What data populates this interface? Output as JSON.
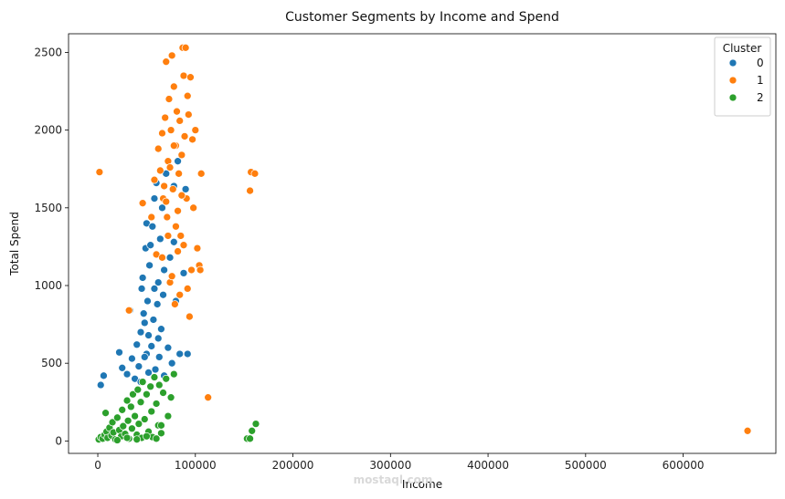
{
  "chart_data": {
    "type": "scatter",
    "title": "Customer Segments by Income and Spend",
    "xlabel": "Income",
    "ylabel": "Total Spend",
    "xlim": [
      -30000,
      695000
    ],
    "ylim": [
      -80,
      2620
    ],
    "xticks": [
      0,
      100000,
      200000,
      300000,
      400000,
      500000,
      600000
    ],
    "yticks": [
      0,
      500,
      1000,
      1500,
      2000,
      2500
    ],
    "grid": false,
    "legend": {
      "title": "Cluster",
      "placement": "top-right"
    },
    "series": [
      {
        "name": "0",
        "color": "#1f77b4",
        "points": [
          [
            3000,
            360
          ],
          [
            6000,
            420
          ],
          [
            22000,
            570
          ],
          [
            25000,
            470
          ],
          [
            30000,
            430
          ],
          [
            33000,
            840
          ],
          [
            35000,
            530
          ],
          [
            38000,
            400
          ],
          [
            40000,
            620
          ],
          [
            42000,
            480
          ],
          [
            44000,
            700
          ],
          [
            45000,
            980
          ],
          [
            46000,
            1050
          ],
          [
            47000,
            820
          ],
          [
            48000,
            760
          ],
          [
            49000,
            1240
          ],
          [
            50000,
            1400
          ],
          [
            50000,
            560
          ],
          [
            51000,
            900
          ],
          [
            52000,
            680
          ],
          [
            53000,
            1130
          ],
          [
            54000,
            1260
          ],
          [
            55000,
            610
          ],
          [
            56000,
            1380
          ],
          [
            57000,
            780
          ],
          [
            58000,
            1560
          ],
          [
            59000,
            460
          ],
          [
            60000,
            1660
          ],
          [
            61000,
            880
          ],
          [
            62000,
            1020
          ],
          [
            63000,
            540
          ],
          [
            64000,
            1300
          ],
          [
            65000,
            720
          ],
          [
            66000,
            1500
          ],
          [
            67000,
            940
          ],
          [
            68000,
            420
          ],
          [
            70000,
            1720
          ],
          [
            72000,
            600
          ],
          [
            74000,
            1180
          ],
          [
            76000,
            500
          ],
          [
            78000,
            1640
          ],
          [
            80000,
            900
          ],
          [
            82000,
            1800
          ],
          [
            84000,
            560
          ],
          [
            88000,
            1080
          ],
          [
            90000,
            1620
          ],
          [
            92000,
            560
          ],
          [
            78000,
            1280
          ],
          [
            68000,
            1100
          ],
          [
            58000,
            980
          ],
          [
            48000,
            540
          ],
          [
            44000,
            380
          ],
          [
            52000,
            440
          ],
          [
            62000,
            660
          ]
        ]
      },
      {
        "name": "1",
        "color": "#ff7f0e",
        "points": [
          [
            1730,
            1730
          ],
          [
            32000,
            840
          ],
          [
            46000,
            1530
          ],
          [
            55000,
            1440
          ],
          [
            58000,
            1680
          ],
          [
            60000,
            1200
          ],
          [
            62000,
            1880
          ],
          [
            64000,
            1740
          ],
          [
            66000,
            1980
          ],
          [
            67000,
            1560
          ],
          [
            68000,
            1640
          ],
          [
            69000,
            2080
          ],
          [
            70000,
            2440
          ],
          [
            71000,
            1440
          ],
          [
            72000,
            1800
          ],
          [
            73000,
            2200
          ],
          [
            74000,
            1020
          ],
          [
            75000,
            2000
          ],
          [
            76000,
            2480
          ],
          [
            77000,
            1620
          ],
          [
            78000,
            2280
          ],
          [
            79000,
            880
          ],
          [
            80000,
            1900
          ],
          [
            81000,
            2120
          ],
          [
            82000,
            1480
          ],
          [
            83000,
            1720
          ],
          [
            84000,
            2060
          ],
          [
            85000,
            1320
          ],
          [
            86000,
            1840
          ],
          [
            87000,
            2530
          ],
          [
            88000,
            2350
          ],
          [
            89000,
            1960
          ],
          [
            90000,
            2530
          ],
          [
            91000,
            1560
          ],
          [
            92000,
            2220
          ],
          [
            93000,
            2100
          ],
          [
            94000,
            800
          ],
          [
            95000,
            2340
          ],
          [
            96000,
            1100
          ],
          [
            97000,
            1940
          ],
          [
            98000,
            1500
          ],
          [
            100000,
            2000
          ],
          [
            102000,
            1240
          ],
          [
            104000,
            1130
          ],
          [
            105000,
            1100
          ],
          [
            106000,
            1720
          ],
          [
            113000,
            280
          ],
          [
            156000,
            1610
          ],
          [
            157000,
            1730
          ],
          [
            161000,
            1720
          ],
          [
            666000,
            65
          ],
          [
            72000,
            1320
          ],
          [
            76000,
            1060
          ],
          [
            80000,
            1380
          ],
          [
            84000,
            940
          ],
          [
            88000,
            1260
          ],
          [
            92000,
            980
          ],
          [
            66000,
            1180
          ],
          [
            70000,
            1540
          ],
          [
            74000,
            1760
          ],
          [
            78000,
            1900
          ],
          [
            82000,
            1220
          ],
          [
            86000,
            1580
          ]
        ]
      },
      {
        "name": "2",
        "color": "#2ca02c",
        "points": [
          [
            1000,
            10
          ],
          [
            3000,
            25
          ],
          [
            5000,
            15
          ],
          [
            7000,
            40
          ],
          [
            8000,
            180
          ],
          [
            9000,
            60
          ],
          [
            10000,
            20
          ],
          [
            12000,
            85
          ],
          [
            14000,
            35
          ],
          [
            15000,
            120
          ],
          [
            16000,
            55
          ],
          [
            18000,
            10
          ],
          [
            20000,
            150
          ],
          [
            22000,
            70
          ],
          [
            24000,
            30
          ],
          [
            25000,
            200
          ],
          [
            26000,
            95
          ],
          [
            28000,
            45
          ],
          [
            30000,
            260
          ],
          [
            31000,
            130
          ],
          [
            32000,
            15
          ],
          [
            34000,
            220
          ],
          [
            35000,
            80
          ],
          [
            36000,
            300
          ],
          [
            38000,
            160
          ],
          [
            40000,
            40
          ],
          [
            41000,
            330
          ],
          [
            42000,
            110
          ],
          [
            44000,
            250
          ],
          [
            45000,
            20
          ],
          [
            46000,
            380
          ],
          [
            48000,
            140
          ],
          [
            50000,
            300
          ],
          [
            52000,
            60
          ],
          [
            54000,
            350
          ],
          [
            55000,
            190
          ],
          [
            56000,
            25
          ],
          [
            58000,
            410
          ],
          [
            60000,
            240
          ],
          [
            62000,
            100
          ],
          [
            63000,
            360
          ],
          [
            65000,
            50
          ],
          [
            67000,
            310
          ],
          [
            70000,
            400
          ],
          [
            72000,
            160
          ],
          [
            75000,
            280
          ],
          [
            78000,
            430
          ],
          [
            65000,
            100
          ],
          [
            60000,
            15
          ],
          [
            50000,
            30
          ],
          [
            40000,
            10
          ],
          [
            30000,
            20
          ],
          [
            20000,
            5
          ],
          [
            153000,
            15
          ],
          [
            156000,
            15
          ],
          [
            158000,
            65
          ],
          [
            162000,
            110
          ]
        ]
      }
    ]
  },
  "watermark": "mostaql.com"
}
